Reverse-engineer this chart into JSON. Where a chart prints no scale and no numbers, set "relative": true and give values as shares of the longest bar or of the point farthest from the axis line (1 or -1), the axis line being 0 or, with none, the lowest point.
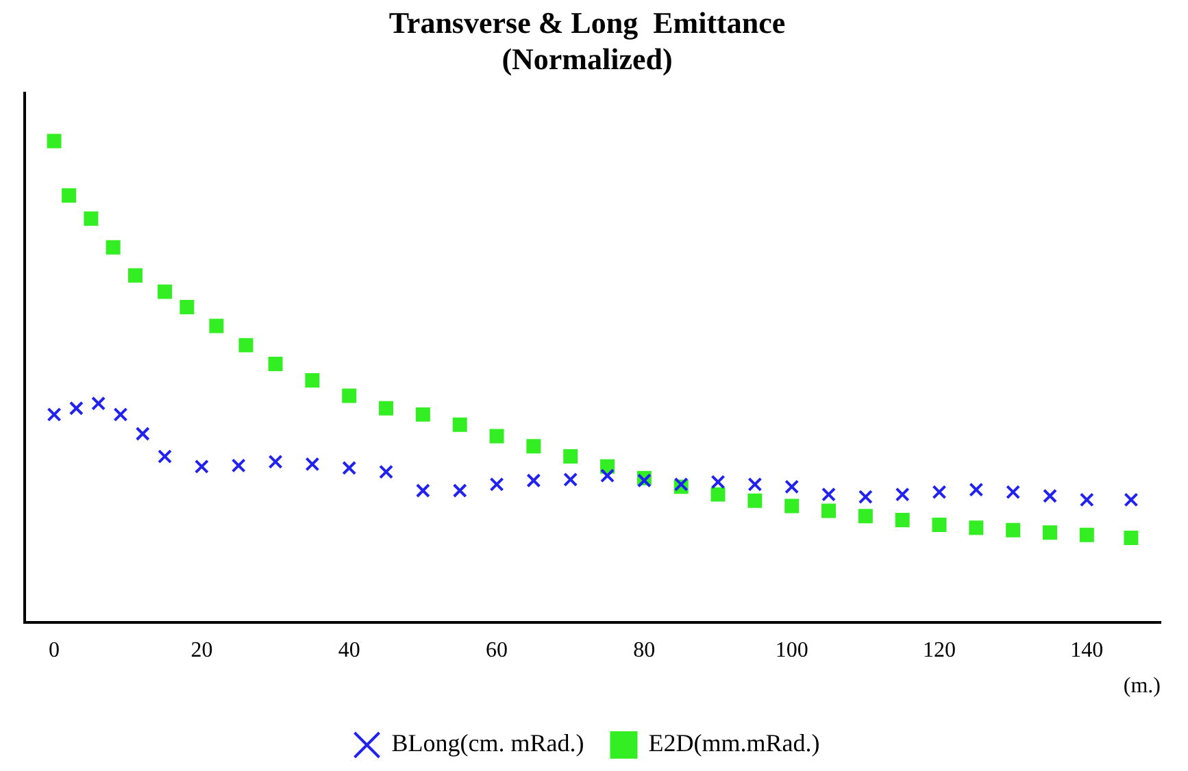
{
  "chart_data": {
    "type": "scatter",
    "title": "Transverse & Long  Emittance",
    "subtitle": "(Normalized)",
    "xlabel": "(m.)",
    "relative": true,
    "xlim": [
      -4,
      150
    ],
    "xticks": [
      0,
      20,
      40,
      60,
      80,
      100,
      120,
      140
    ],
    "legend": "bottom",
    "grid": false,
    "series": [
      {
        "name": "E2D(mm.mRad.)",
        "color": "#33ee22",
        "marker": "square",
        "x": [
          0,
          2,
          5,
          8,
          11,
          15,
          18,
          22,
          26,
          30,
          35,
          40,
          45,
          50,
          55,
          60,
          65,
          70,
          75,
          80,
          85,
          90,
          95,
          100,
          105,
          110,
          115,
          120,
          125,
          130,
          135,
          140,
          146
        ],
        "values": [
          1.0,
          0.887,
          0.839,
          0.779,
          0.721,
          0.687,
          0.655,
          0.616,
          0.576,
          0.537,
          0.503,
          0.471,
          0.445,
          0.432,
          0.411,
          0.387,
          0.366,
          0.345,
          0.324,
          0.3,
          0.282,
          0.266,
          0.253,
          0.242,
          0.232,
          0.221,
          0.213,
          0.203,
          0.197,
          0.192,
          0.187,
          0.182,
          0.176
        ]
      },
      {
        "name": "BLong(cm. mRad.)",
        "color": "#2222ee",
        "marker": "cross",
        "x": [
          0,
          3,
          6,
          9,
          12,
          15,
          20,
          25,
          30,
          35,
          40,
          45,
          50,
          55,
          60,
          65,
          70,
          75,
          80,
          85,
          90,
          95,
          100,
          105,
          110,
          115,
          120,
          125,
          130,
          135,
          140,
          146
        ],
        "values": [
          0.432,
          0.445,
          0.455,
          0.432,
          0.392,
          0.345,
          0.324,
          0.326,
          0.334,
          0.329,
          0.321,
          0.313,
          0.274,
          0.274,
          0.287,
          0.295,
          0.297,
          0.305,
          0.295,
          0.287,
          0.292,
          0.287,
          0.282,
          0.266,
          0.261,
          0.266,
          0.271,
          0.276,
          0.271,
          0.263,
          0.255,
          0.255
        ]
      }
    ]
  }
}
